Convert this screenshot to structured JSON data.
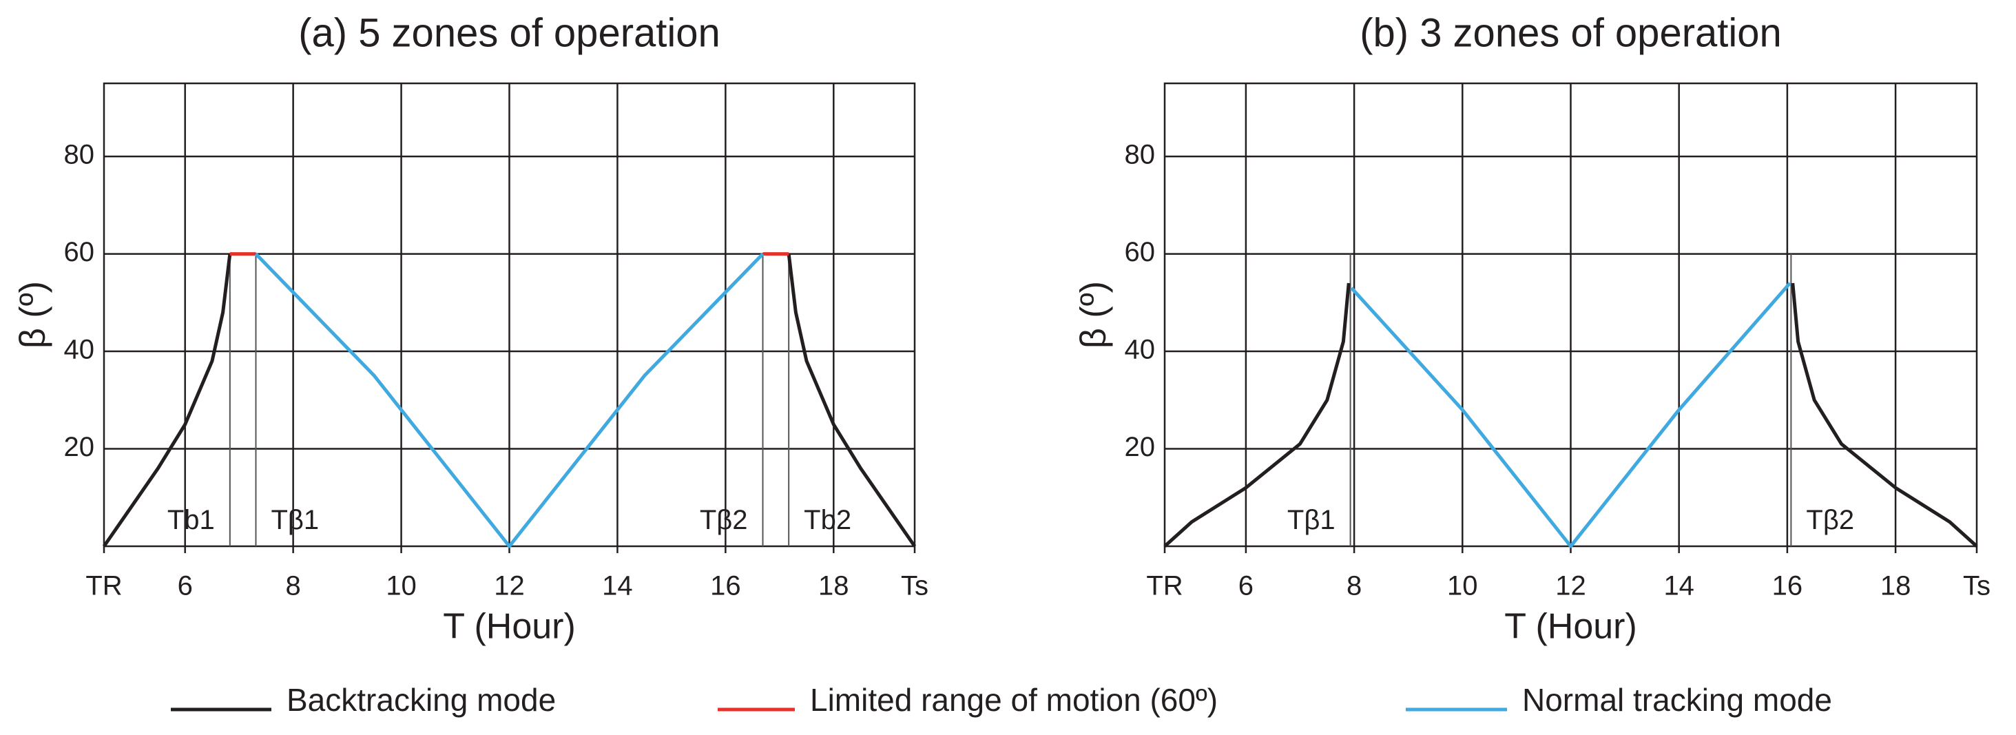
{
  "chart_data": [
    {
      "type": "line",
      "title": "(a) 5 zones of operation",
      "x_label": "T (Hour)",
      "y_label": "β (º)",
      "xlim": [
        4.5,
        19.5
      ],
      "ylim": [
        0,
        95
      ],
      "xticks": [
        {
          "value": 4.5,
          "label": "TR"
        },
        6,
        8,
        10,
        12,
        14,
        16,
        18,
        {
          "value": 19.5,
          "label": "Ts"
        }
      ],
      "yticks": [
        20,
        40,
        60,
        80
      ],
      "grid": true,
      "series": [
        {
          "name": "Backtracking mode",
          "color": "#231f20",
          "x": [
            4.5,
            5,
            5.5,
            6,
            6.5,
            6.7,
            6.83,
            null,
            17.17,
            17.3,
            17.5,
            18,
            18.5,
            19,
            19.5
          ],
          "values": [
            0,
            8,
            16,
            25,
            38,
            48,
            60,
            null,
            60,
            48,
            38,
            25,
            16,
            8,
            0
          ]
        },
        {
          "name": "Limited range of motion (60º)",
          "color": "#e8312a",
          "x": [
            6.83,
            7.31,
            null,
            16.69,
            17.17
          ],
          "values": [
            60,
            60,
            null,
            60,
            60
          ]
        },
        {
          "name": "Normal tracking mode",
          "color": "#3fa9e0",
          "x": [
            7.31,
            9.5,
            12,
            14.5,
            16.69
          ],
          "values": [
            60,
            35,
            0,
            35,
            60
          ]
        }
      ],
      "annotations": [
        {
          "text": "Tb1",
          "x": 6.83,
          "side": "left"
        },
        {
          "text": "Tβ1",
          "x": 7.31,
          "side": "right"
        },
        {
          "text": "Tβ2",
          "x": 16.69,
          "side": "left"
        },
        {
          "text": "Tb2",
          "x": 17.17,
          "side": "right"
        }
      ]
    },
    {
      "type": "line",
      "title": "(b) 3 zones of operation",
      "x_label": "T (Hour)",
      "y_label": "β (º)",
      "xlim": [
        4.5,
        19.5
      ],
      "ylim": [
        0,
        95
      ],
      "xticks": [
        {
          "value": 4.5,
          "label": "TR"
        },
        6,
        8,
        10,
        12,
        14,
        16,
        18,
        {
          "value": 19.5,
          "label": "Ts"
        }
      ],
      "yticks": [
        20,
        40,
        60,
        80
      ],
      "grid": true,
      "series": [
        {
          "color": "#231f20",
          "x": [
            4.5,
            5,
            6,
            7,
            7.5,
            7.8,
            7.9,
            null,
            16.1,
            16.2,
            16.5,
            17,
            18,
            19,
            19.5
          ],
          "values": [
            0,
            5,
            12,
            21,
            30,
            42,
            54,
            null,
            54,
            42,
            30,
            21,
            12,
            5,
            0
          ]
        },
        {
          "color": "#3fa9e0",
          "x": [
            7.95,
            10,
            12,
            14,
            16.05
          ],
          "values": [
            53,
            28,
            0,
            28,
            54
          ]
        }
      ],
      "annotations": [
        {
          "text": "Tβ1",
          "x": 7.93,
          "side": "left"
        },
        {
          "text": "Tβ2",
          "x": 16.07,
          "side": "right"
        }
      ]
    }
  ]
}
